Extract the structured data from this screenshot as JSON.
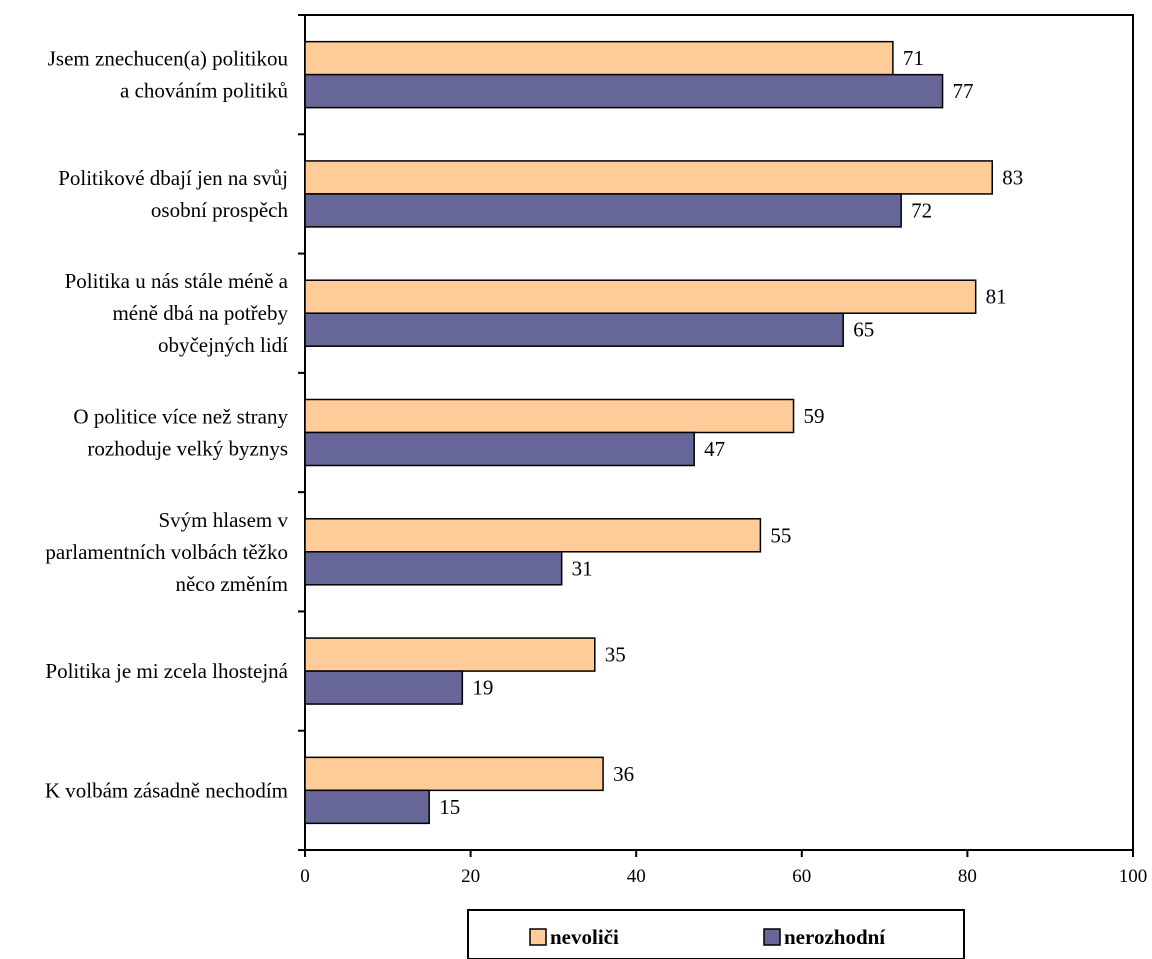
{
  "chart_data": {
    "type": "bar",
    "orientation": "horizontal",
    "categories": [
      [
        "Jsem znechucen(a) politikou",
        "a chováním politiků"
      ],
      [
        "Politikové dbají jen na svůj",
        "osobní prospěch"
      ],
      [
        "Politika u nás stále méně a",
        "méně dbá na potřeby",
        "obyčejných lidí"
      ],
      [
        "O politice více než strany",
        "rozhoduje velký byznys"
      ],
      [
        "Svým hlasem v",
        "parlamentních volbách těžko",
        "něco změním"
      ],
      [
        "Politika je mi zcela lhostejná"
      ],
      [
        "K volbám zásadně nechodím"
      ]
    ],
    "series": [
      {
        "name": "nevoliči",
        "color": "#FFCC99",
        "values": [
          71,
          83,
          81,
          59,
          55,
          35,
          36
        ]
      },
      {
        "name": "nerozhodní",
        "color": "#666699",
        "values": [
          77,
          72,
          65,
          47,
          31,
          19,
          15
        ]
      }
    ],
    "xlim": [
      0,
      100
    ],
    "xticks": [
      "0",
      "20",
      "40",
      "60",
      "80",
      "100"
    ],
    "title": "",
    "xlabel": "",
    "ylabel": "",
    "grid": false,
    "legend_position": "bottom"
  }
}
